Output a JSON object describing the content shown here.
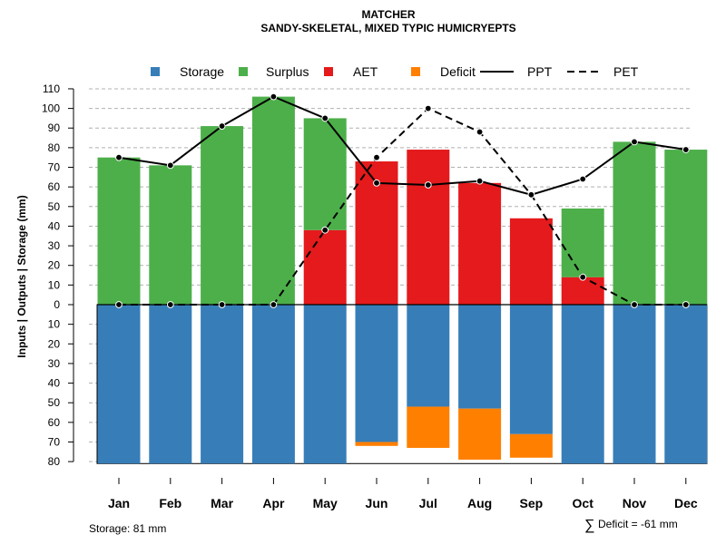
{
  "chart_data": {
    "type": "bar",
    "title": "MATCHER",
    "subtitle": "SANDY-SKELETAL, MIXED TYPIC HUMICRYEPTS",
    "ylabel": "Inputs | Outputs | Storage     (mm)",
    "ylim": [
      -80,
      110
    ],
    "y_ticks_up": [
      0,
      10,
      20,
      30,
      40,
      50,
      60,
      70,
      80,
      90,
      100,
      110
    ],
    "y_ticks_down": [
      10,
      20,
      30,
      40,
      50,
      60,
      70,
      80
    ],
    "grid": true,
    "categories": [
      "Jan",
      "Feb",
      "Mar",
      "Apr",
      "May",
      "Jun",
      "Jul",
      "Aug",
      "Sep",
      "Oct",
      "Nov",
      "Dec"
    ],
    "legend": [
      {
        "label": "Storage",
        "kind": "square",
        "color": "#377EB8"
      },
      {
        "label": "Surplus",
        "kind": "square",
        "color": "#4DAF4A"
      },
      {
        "label": "AET",
        "kind": "square",
        "color": "#E41A1C"
      },
      {
        "label": "Deficit",
        "kind": "square",
        "color": "#FF7F00"
      },
      {
        "label": "PPT",
        "kind": "solid-line",
        "color": "#000000"
      },
      {
        "label": "PET",
        "kind": "dashed-line",
        "color": "#000000"
      }
    ],
    "series": [
      {
        "name": "AET",
        "color": "#E41A1C",
        "values": [
          0,
          0,
          0,
          0,
          38,
          73,
          79,
          62,
          44,
          14,
          0,
          0
        ]
      },
      {
        "name": "Surplus",
        "color": "#4DAF4A",
        "values": [
          75,
          71,
          91,
          106,
          57,
          0,
          0,
          0,
          0,
          35,
          83,
          79
        ]
      },
      {
        "name": "Storage",
        "color": "#377EB8",
        "values": [
          81,
          81,
          81,
          81,
          81,
          70,
          52,
          53,
          66,
          81,
          81,
          81
        ]
      },
      {
        "name": "Deficit",
        "color": "#FF7F00",
        "values": [
          0,
          0,
          0,
          0,
          0,
          2,
          21,
          26,
          12,
          0,
          0,
          0
        ]
      },
      {
        "name": "PPT",
        "color": "#000000",
        "values": [
          75,
          71,
          91,
          106,
          95,
          62,
          61,
          63,
          56,
          64,
          83,
          79
        ]
      },
      {
        "name": "PET",
        "color": "#000000",
        "values": [
          0,
          0,
          0,
          0,
          38,
          75,
          100,
          88,
          56,
          14,
          0,
          0
        ]
      }
    ],
    "storage_capacity": 81,
    "total_deficit": -61
  },
  "footer": {
    "storage_label": "Storage: 81 mm",
    "deficit_symbol": "∑",
    "deficit_label": "Deficit = -61 mm"
  }
}
